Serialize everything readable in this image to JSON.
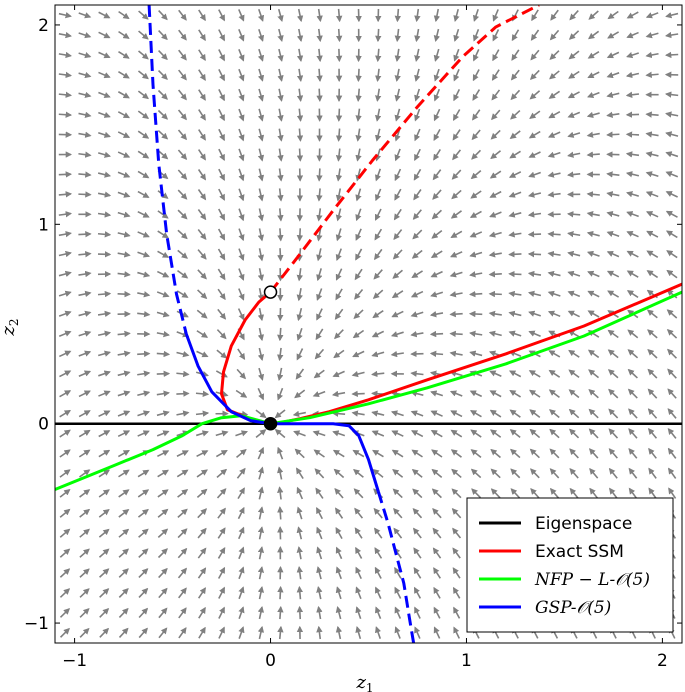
{
  "chart_data": {
    "type": "line",
    "title": "",
    "xlabel": "z",
    "xlabel_sub": "1",
    "ylabel": "z",
    "ylabel_sub": "2",
    "xlim": [
      -1.1,
      2.1
    ],
    "ylim": [
      -1.1,
      2.1
    ],
    "xticks": [
      -1,
      0,
      1,
      2
    ],
    "yticks": [
      -1,
      0,
      1,
      2
    ],
    "xtick_labels": [
      "−1",
      "0",
      "1",
      "2"
    ],
    "ytick_labels": [
      "−1",
      "0",
      "1",
      "2"
    ],
    "grid": false,
    "legend_position": "bottom-right",
    "background": "vector field of gray arrows",
    "colors": {
      "eigenspace": "#000000",
      "exact_ssm": "#ff0000",
      "nfp": "#00ff00",
      "gsp": "#0000ff",
      "arrows": "#808080"
    },
    "series": [
      {
        "name": "Eigenspace",
        "color": "#000000",
        "style": "solid",
        "x": [
          -1.1,
          2.1
        ],
        "y": [
          0,
          0
        ]
      },
      {
        "name": "Exact SSM",
        "color": "#ff0000",
        "segments": [
          {
            "style": "solid",
            "x": [
              2.1,
              1.6,
              1.2,
              0.8,
              0.5,
              0.3,
              0.15,
              0.05,
              0.0
            ],
            "y": [
              0.7,
              0.49,
              0.35,
              0.22,
              0.12,
              0.06,
              0.025,
              0.005,
              0.0
            ]
          },
          {
            "style": "solid",
            "x": [
              0.0,
              -0.12,
              -0.22,
              -0.25,
              -0.24,
              -0.2,
              -0.13,
              -0.06,
              0.0
            ],
            "y": [
              0.0,
              0.03,
              0.07,
              0.15,
              0.26,
              0.39,
              0.52,
              0.61,
              0.66
            ]
          },
          {
            "style": "dashed",
            "x": [
              0.0,
              0.15,
              0.32,
              0.52,
              0.75,
              0.98,
              1.15,
              1.37
            ],
            "y": [
              0.66,
              0.85,
              1.07,
              1.32,
              1.59,
              1.84,
              1.99,
              2.1
            ]
          }
        ]
      },
      {
        "name": "NFP − L-𝒪(5)",
        "color": "#00ff00",
        "segments": [
          {
            "style": "solid",
            "x": [
              -1.1,
              -0.8,
              -0.6,
              -0.45,
              -0.35,
              -0.25,
              -0.15,
              0.0,
              0.2,
              0.5,
              0.8,
              1.2,
              1.6,
              2.1
            ],
            "y": [
              -0.33,
              -0.21,
              -0.13,
              -0.06,
              0.0,
              0.03,
              0.04,
              0.0,
              0.03,
              0.1,
              0.18,
              0.3,
              0.44,
              0.66
            ]
          }
        ]
      },
      {
        "name": "GSP-𝒪(5)",
        "color": "#0000ff",
        "segments": [
          {
            "style": "dashed",
            "x": [
              -0.62,
              -0.6,
              -0.57,
              -0.53,
              -0.48,
              -0.43
            ],
            "y": [
              2.1,
              1.7,
              1.3,
              0.95,
              0.65,
              0.45
            ]
          },
          {
            "style": "solid",
            "x": [
              -0.43,
              -0.37,
              -0.3,
              -0.2,
              -0.1,
              0.0
            ],
            "y": [
              0.45,
              0.29,
              0.16,
              0.06,
              0.015,
              0.0
            ]
          },
          {
            "style": "solid",
            "x": [
              0.0,
              0.1,
              0.2,
              0.32,
              0.4,
              0.45,
              0.5,
              0.55
            ],
            "y": [
              0.0,
              0.0,
              0.0,
              0.0,
              -0.01,
              -0.06,
              -0.18,
              -0.34
            ]
          },
          {
            "style": "dashed",
            "x": [
              0.55,
              0.6,
              0.64,
              0.68,
              0.71,
              0.73
            ],
            "y": [
              -0.34,
              -0.5,
              -0.65,
              -0.8,
              -0.98,
              -1.1
            ]
          }
        ]
      }
    ],
    "markers": [
      {
        "name": "origin",
        "x": 0,
        "y": 0,
        "fill": "#000000"
      },
      {
        "name": "open-point",
        "x": 0,
        "y": 0.66,
        "fill": "#ffffff"
      }
    ],
    "legend": [
      {
        "label": "Eigenspace",
        "color": "#000000",
        "italic": false
      },
      {
        "label": "Exact SSM",
        "color": "#ff0000",
        "italic": false
      },
      {
        "label": "NFP − L-𝒪(5)",
        "color": "#00ff00",
        "italic": true
      },
      {
        "label": "GSP-𝒪(5)",
        "color": "#0000ff",
        "italic": true
      }
    ]
  }
}
